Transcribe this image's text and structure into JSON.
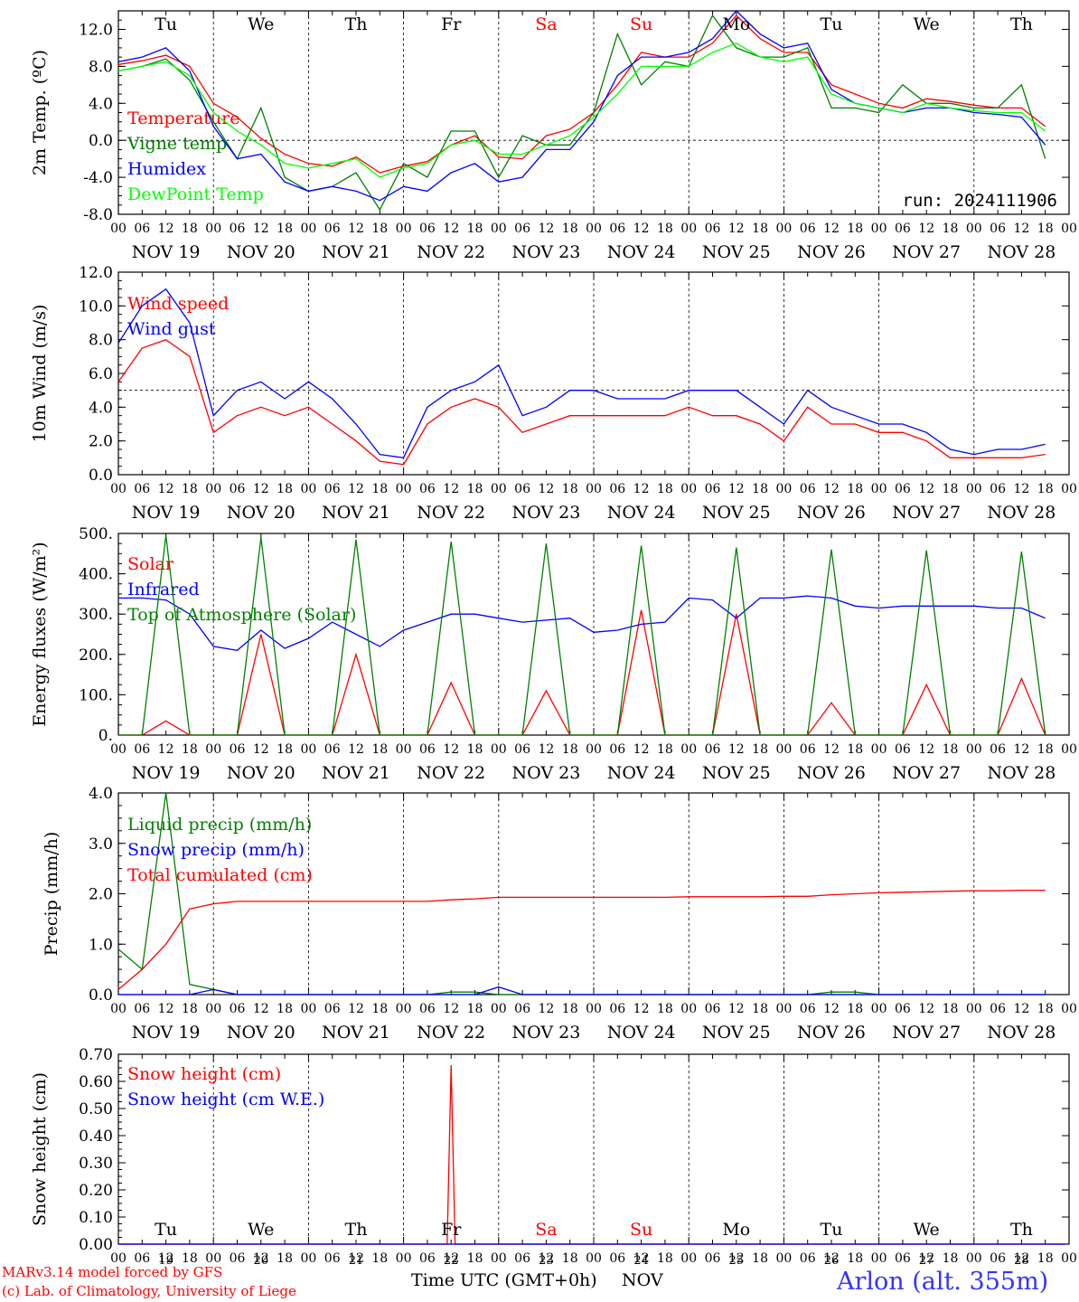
{
  "run_label": "run: 2024111906",
  "days": [
    {
      "abbr": "Tu",
      "date": "NOV 19",
      "num": "19",
      "color": "#000000"
    },
    {
      "abbr": "We",
      "date": "NOV 20",
      "num": "20",
      "color": "#000000"
    },
    {
      "abbr": "Th",
      "date": "NOV 21",
      "num": "21",
      "color": "#000000"
    },
    {
      "abbr": "Fr",
      "date": "NOV 22",
      "num": "22",
      "color": "#000000"
    },
    {
      "abbr": "Sa",
      "date": "NOV 23",
      "num": "23",
      "color": "#ff0000"
    },
    {
      "abbr": "Su",
      "date": "NOV 24",
      "num": "24",
      "color": "#ff0000"
    },
    {
      "abbr": "Mo",
      "date": "NOV 25",
      "num": "25",
      "color": "#000000"
    },
    {
      "abbr": "Tu",
      "date": "NOV 26",
      "num": "26",
      "color": "#000000"
    },
    {
      "abbr": "We",
      "date": "NOV 27",
      "num": "27",
      "color": "#000000"
    },
    {
      "abbr": "Th",
      "date": "NOV 28",
      "num": "28",
      "color": "#000000"
    }
  ],
  "hour_ticks": [
    "00",
    "06",
    "12",
    "18"
  ],
  "footer": {
    "credit1": "MARv3.14 model forced by GFS",
    "credit2": "(c) Lab. of Climatology, University of Liege",
    "xaxis_label": "Time UTC (GMT+0h)",
    "month": "NOV",
    "station": "Arlon (alt. 355m)"
  },
  "chart_data": [
    {
      "type": "line",
      "ylabel": "2m Temp. (ºC)",
      "ylim": [
        -8,
        14
      ],
      "yticks": [
        "-8.0",
        "-4.0",
        "0.0",
        "4.0",
        "8.0",
        "12.0"
      ],
      "yticks_values": [
        -8,
        -4,
        0,
        4,
        8,
        12
      ],
      "ref_line": 0,
      "x_hours": [
        0,
        6,
        12,
        18,
        24,
        30,
        36,
        42,
        48,
        54,
        60,
        66,
        72,
        78,
        84,
        90,
        96,
        102,
        108,
        114,
        120,
        126,
        132,
        138,
        144,
        150,
        156,
        162,
        168,
        174,
        180,
        186,
        192,
        198,
        204,
        210,
        216,
        222,
        228,
        234
      ],
      "series": [
        {
          "name": "Temperature",
          "color": "#ff0000",
          "values": [
            8.2,
            8.6,
            9.2,
            8.0,
            4.0,
            2.5,
            0.2,
            -1.5,
            -2.5,
            -2.8,
            -1.8,
            -3.5,
            -2.8,
            -2.3,
            -0.5,
            0.5,
            -1.8,
            -2.0,
            0.5,
            1.2,
            3.0,
            6.0,
            9.5,
            9.0,
            9.0,
            10.5,
            13.5,
            11.0,
            9.5,
            9.5,
            6.0,
            5.0,
            4.0,
            3.5,
            4.5,
            4.2,
            3.8,
            3.5,
            3.5,
            1.5
          ]
        },
        {
          "name": "Vigne temp",
          "color": "#008000",
          "values": [
            7.5,
            8.0,
            8.8,
            6.5,
            2.0,
            -2.0,
            3.5,
            -4.0,
            -5.5,
            -5.0,
            -3.5,
            -7.5,
            -2.5,
            -4.0,
            1.0,
            1.0,
            -4.0,
            0.5,
            -0.5,
            -0.5,
            3.0,
            11.5,
            6.0,
            8.5,
            8.0,
            13.5,
            10.0,
            9.0,
            9.0,
            10.0,
            3.5,
            3.5,
            3.0,
            6.0,
            4.0,
            4.0,
            3.5,
            3.5,
            6.0,
            -2.0
          ]
        },
        {
          "name": "Humidex",
          "color": "#0000ff",
          "values": [
            8.5,
            9.0,
            10.0,
            7.5,
            1.5,
            -2.0,
            -1.5,
            -4.5,
            -5.5,
            -5.0,
            -5.5,
            -6.5,
            -5.0,
            -5.5,
            -3.5,
            -2.5,
            -4.5,
            -4.0,
            -1.0,
            -1.0,
            2.0,
            7.0,
            9.0,
            9.0,
            9.5,
            11.0,
            14.0,
            11.5,
            10.0,
            10.5,
            5.5,
            4.0,
            3.5,
            3.0,
            3.5,
            3.5,
            3.0,
            2.8,
            2.5,
            -0.5
          ]
        },
        {
          "name": "DewPoint Temp",
          "color": "#00ff00",
          "values": [
            7.5,
            8.0,
            8.5,
            7.0,
            3.0,
            1.0,
            -0.5,
            -2.5,
            -3.0,
            -2.5,
            -2.0,
            -4.0,
            -3.0,
            -2.5,
            -0.5,
            0.0,
            -1.5,
            -1.5,
            -0.5,
            0.5,
            2.5,
            5.0,
            8.0,
            8.0,
            8.0,
            9.5,
            10.5,
            9.0,
            8.5,
            9.0,
            5.0,
            4.0,
            3.5,
            3.0,
            4.0,
            3.5,
            3.2,
            3.0,
            3.0,
            1.0
          ]
        }
      ]
    },
    {
      "type": "line",
      "ylabel": "10m Wind (m/s)",
      "ylim": [
        0,
        12
      ],
      "yticks": [
        "0.0",
        "2.0",
        "4.0",
        "6.0",
        "8.0",
        "10.0",
        "12.0"
      ],
      "yticks_values": [
        0,
        2,
        4,
        6,
        8,
        10,
        12
      ],
      "ref_line": 5,
      "x_hours": [
        0,
        6,
        12,
        18,
        24,
        30,
        36,
        42,
        48,
        54,
        60,
        66,
        72,
        78,
        84,
        90,
        96,
        102,
        108,
        114,
        120,
        126,
        132,
        138,
        144,
        150,
        156,
        162,
        168,
        174,
        180,
        186,
        192,
        198,
        204,
        210,
        216,
        222,
        228,
        234
      ],
      "series": [
        {
          "name": "Wind speed",
          "color": "#ff0000",
          "values": [
            5.5,
            7.5,
            8.0,
            7.0,
            2.5,
            3.5,
            4.0,
            3.5,
            4.0,
            3.0,
            2.0,
            0.8,
            0.6,
            3.0,
            4.0,
            4.5,
            4.0,
            2.5,
            3.0,
            3.5,
            3.5,
            3.5,
            3.5,
            3.5,
            4.0,
            3.5,
            3.5,
            3.0,
            2.0,
            4.0,
            3.0,
            3.0,
            2.5,
            2.5,
            2.0,
            1.0,
            1.0,
            1.0,
            1.0,
            1.2
          ]
        },
        {
          "name": "Wind gust",
          "color": "#0000ff",
          "values": [
            7.8,
            10.0,
            11.0,
            9.0,
            3.5,
            5.0,
            5.5,
            4.5,
            5.5,
            4.5,
            3.0,
            1.2,
            1.0,
            4.0,
            5.0,
            5.5,
            6.5,
            3.5,
            4.0,
            5.0,
            5.0,
            4.5,
            4.5,
            4.5,
            5.0,
            5.0,
            5.0,
            4.0,
            3.0,
            5.0,
            4.0,
            3.5,
            3.0,
            3.0,
            2.5,
            1.5,
            1.2,
            1.5,
            1.5,
            1.8
          ]
        }
      ]
    },
    {
      "type": "line",
      "ylabel": "Energy fluxes (W/m²)",
      "ylim": [
        0,
        500
      ],
      "yticks": [
        "0.",
        "100.",
        "200.",
        "300.",
        "400.",
        "500."
      ],
      "yticks_values": [
        0,
        100,
        200,
        300,
        400,
        500
      ],
      "x_hours": [
        0,
        6,
        12,
        18,
        24,
        30,
        36,
        42,
        48,
        54,
        60,
        66,
        72,
        78,
        84,
        90,
        96,
        102,
        108,
        114,
        120,
        126,
        132,
        138,
        144,
        150,
        156,
        162,
        168,
        174,
        180,
        186,
        192,
        198,
        204,
        210,
        216,
        222,
        228,
        234
      ],
      "series": [
        {
          "name": "Solar",
          "color": "#ff0000",
          "values": [
            0,
            0,
            35,
            0,
            0,
            0,
            250,
            0,
            0,
            0,
            200,
            0,
            0,
            0,
            130,
            0,
            0,
            0,
            110,
            0,
            0,
            0,
            310,
            0,
            0,
            0,
            300,
            0,
            0,
            0,
            80,
            0,
            0,
            0,
            125,
            0,
            0,
            0,
            140,
            0
          ]
        },
        {
          "name": "Infrared",
          "color": "#0000ff",
          "values": [
            340,
            340,
            335,
            300,
            220,
            210,
            260,
            215,
            240,
            280,
            250,
            220,
            260,
            280,
            300,
            300,
            290,
            280,
            285,
            290,
            255,
            260,
            275,
            280,
            340,
            335,
            290,
            340,
            340,
            345,
            340,
            320,
            315,
            320,
            320,
            320,
            320,
            315,
            315,
            290
          ]
        },
        {
          "name": "Top of Atmosphere (Solar)",
          "color": "#008000",
          "values": [
            0,
            0,
            495,
            0,
            0,
            0,
            490,
            0,
            0,
            0,
            485,
            0,
            0,
            0,
            480,
            0,
            0,
            0,
            475,
            0,
            0,
            0,
            470,
            0,
            0,
            0,
            465,
            0,
            0,
            0,
            460,
            0,
            0,
            0,
            458,
            0,
            0,
            0,
            455,
            0
          ]
        }
      ]
    },
    {
      "type": "line",
      "ylabel": "Precip (mm/h)",
      "ylim": [
        0,
        4
      ],
      "yticks": [
        "0.0",
        "1.0",
        "2.0",
        "3.0",
        "4.0"
      ],
      "yticks_values": [
        0,
        1,
        2,
        3,
        4
      ],
      "x_hours": [
        0,
        6,
        12,
        18,
        24,
        30,
        36,
        42,
        48,
        54,
        60,
        66,
        72,
        78,
        84,
        90,
        96,
        102,
        108,
        114,
        120,
        126,
        132,
        138,
        144,
        150,
        156,
        162,
        168,
        174,
        180,
        186,
        192,
        198,
        204,
        210,
        216,
        222,
        228,
        234
      ],
      "series": [
        {
          "name": "Liquid precip (mm/h)",
          "color": "#008000",
          "values": [
            0.9,
            0.5,
            4.0,
            0.2,
            0.1,
            0,
            0,
            0,
            0,
            0,
            0,
            0,
            0,
            0,
            0.05,
            0.05,
            0,
            0,
            0,
            0,
            0,
            0,
            0,
            0,
            0,
            0,
            0,
            0,
            0,
            0,
            0.05,
            0.05,
            0,
            0,
            0,
            0,
            0,
            0,
            0,
            0
          ]
        },
        {
          "name": "Snow precip (mm/h)",
          "color": "#0000ff",
          "values": [
            0,
            0,
            0,
            0,
            0.1,
            0,
            0,
            0,
            0,
            0,
            0,
            0,
            0,
            0,
            0,
            0,
            0.15,
            0,
            0,
            0,
            0,
            0,
            0,
            0,
            0,
            0,
            0,
            0,
            0,
            0,
            0,
            0,
            0,
            0,
            0,
            0,
            0,
            0,
            0,
            0
          ]
        },
        {
          "name": "Total cumulated (cm)",
          "color": "#ff0000",
          "values": [
            0.1,
            0.5,
            1.0,
            1.7,
            1.8,
            1.85,
            1.85,
            1.85,
            1.85,
            1.85,
            1.85,
            1.85,
            1.85,
            1.85,
            1.88,
            1.9,
            1.93,
            1.93,
            1.93,
            1.93,
            1.93,
            1.93,
            1.93,
            1.93,
            1.94,
            1.94,
            1.94,
            1.94,
            1.95,
            1.95,
            1.98,
            2.0,
            2.02,
            2.03,
            2.04,
            2.05,
            2.06,
            2.06,
            2.07,
            2.07
          ]
        }
      ]
    },
    {
      "type": "line",
      "ylabel": "Snow height (cm)",
      "ylim": [
        0,
        0.7
      ],
      "yticks": [
        "0.00",
        "0.10",
        "0.20",
        "0.30",
        "0.40",
        "0.50",
        "0.60",
        "0.70"
      ],
      "yticks_values": [
        0,
        0.1,
        0.2,
        0.3,
        0.4,
        0.5,
        0.6,
        0.7
      ],
      "x_hours": [
        0,
        72,
        83,
        84,
        85,
        96,
        239
      ],
      "series": [
        {
          "name": "Snow height (cm)",
          "color": "#ff0000",
          "values": [
            0,
            0,
            0,
            0.66,
            0,
            0,
            0
          ]
        },
        {
          "name": "Snow height (cm W.E.)",
          "color": "#0000ff",
          "values": [
            0,
            0,
            0,
            0,
            0,
            0,
            0
          ]
        }
      ]
    }
  ]
}
